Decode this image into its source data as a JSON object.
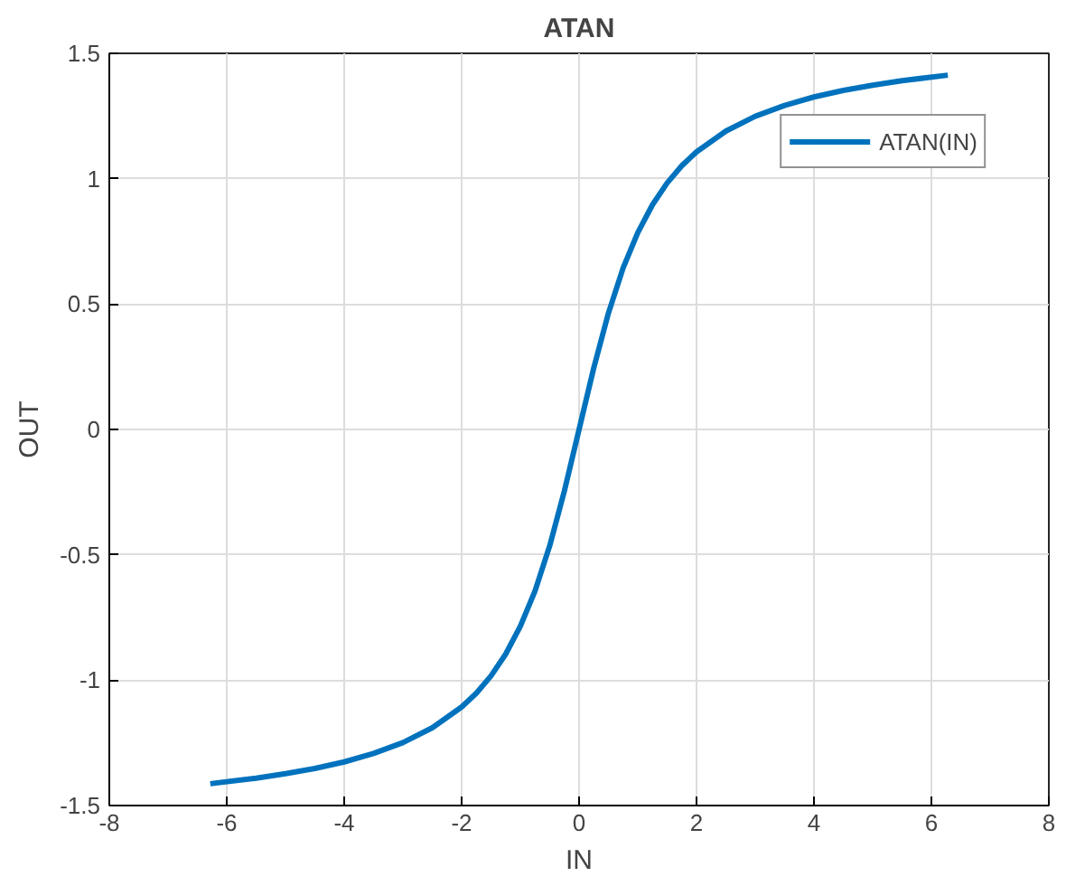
{
  "chart_data": {
    "type": "line",
    "title": "ATAN",
    "xlabel": "IN",
    "ylabel": "OUT",
    "series": [
      {
        "name": "ATAN(IN)",
        "color": "#0072bd",
        "x": [
          -6.28,
          -5.5,
          -5,
          -4.5,
          -4,
          -3.5,
          -3,
          -2.5,
          -2,
          -1.75,
          -1.5,
          -1.25,
          -1,
          -0.75,
          -0.5,
          -0.25,
          0,
          0.25,
          0.5,
          0.75,
          1,
          1.25,
          1.5,
          1.75,
          2,
          2.5,
          3,
          3.5,
          4,
          4.5,
          5,
          5.5,
          6.28
        ],
        "values": [
          -1.413,
          -1.391,
          -1.373,
          -1.352,
          -1.326,
          -1.292,
          -1.249,
          -1.19,
          -1.107,
          -1.052,
          -0.983,
          -0.896,
          -0.785,
          -0.644,
          -0.464,
          -0.245,
          0,
          0.245,
          0.464,
          0.644,
          0.785,
          0.896,
          0.983,
          1.052,
          1.107,
          1.19,
          1.249,
          1.292,
          1.326,
          1.352,
          1.373,
          1.391,
          1.413
        ]
      }
    ],
    "xlim": [
      -8,
      8
    ],
    "ylim": [
      -1.5,
      1.5
    ],
    "xticks": [
      -8,
      -6,
      -4,
      -2,
      0,
      2,
      4,
      6,
      8
    ],
    "yticks": [
      -1.5,
      -1,
      -0.5,
      0,
      0.5,
      1,
      1.5
    ],
    "grid": true,
    "legend": "top right",
    "marker": "none",
    "line_style": "solid"
  }
}
